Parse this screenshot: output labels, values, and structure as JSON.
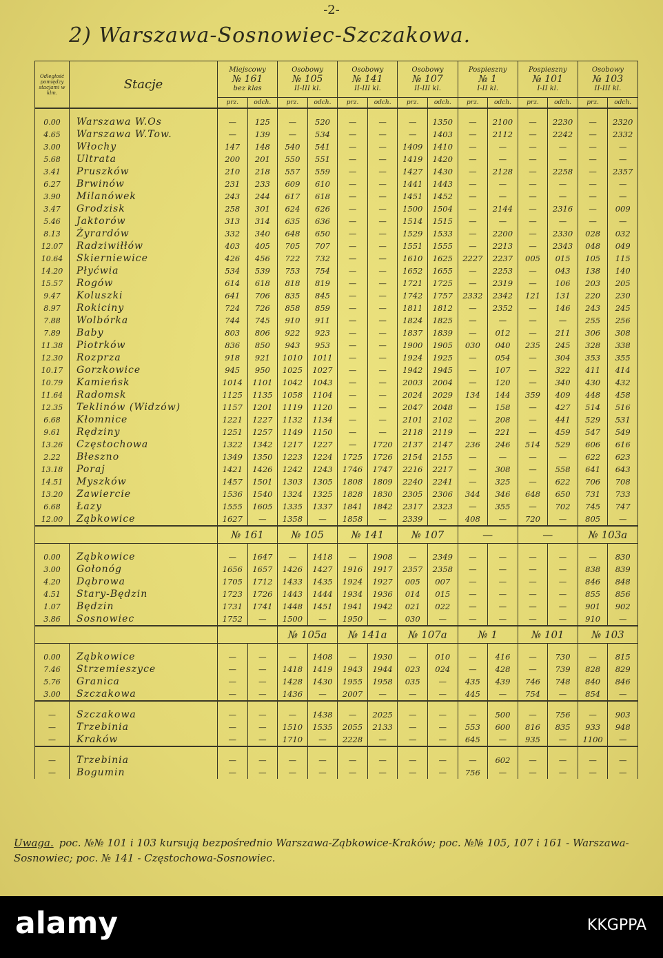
{
  "page_number": "-2-",
  "title": "2) Warszawa-Sosnowiec-Szczakowa.",
  "table": {
    "distance_header": "Odległość pomiędzy stacjami w klm.",
    "station_header": "Stacje",
    "trains": [
      {
        "category": "Miejscowy",
        "number": "№ 161",
        "classes": "bez klas"
      },
      {
        "category": "Osobowy",
        "number": "№ 105",
        "classes": "II-III kl."
      },
      {
        "category": "Osobowy",
        "number": "№ 141",
        "classes": "II-III kl."
      },
      {
        "category": "Osobowy",
        "number": "№ 107",
        "classes": "II-III kl."
      },
      {
        "category": "Pospieszny",
        "number": "№ 1",
        "classes": "I-II kl."
      },
      {
        "category": "Pospieszny",
        "number": "№ 101",
        "classes": "I-II kl."
      },
      {
        "category": "Osobowy",
        "number": "№ 103",
        "classes": "II-III kl."
      }
    ],
    "arrival_label": "prz.",
    "departure_label": "odch.",
    "sections": [
      {
        "rows": [
          [
            "0.00",
            "Warszawa W.Os",
            "—",
            "125",
            "—",
            "520",
            "—",
            "—",
            "—",
            "1350",
            "—",
            "2100",
            "—",
            "2230",
            "—",
            "2320"
          ],
          [
            "4.65",
            "Warszawa W.Tow.",
            "—",
            "139",
            "—",
            "534",
            "—",
            "—",
            "—",
            "1403",
            "—",
            "2112",
            "—",
            "2242",
            "—",
            "2332"
          ],
          [
            "3.00",
            "Włochy",
            "147",
            "148",
            "540",
            "541",
            "—",
            "—",
            "1409",
            "1410",
            "—",
            "—",
            "—",
            "—",
            "—",
            "—"
          ],
          [
            "5.68",
            "Ultrata",
            "200",
            "201",
            "550",
            "551",
            "—",
            "—",
            "1419",
            "1420",
            "—",
            "—",
            "—",
            "—",
            "—",
            "—"
          ],
          [
            "3.41",
            "Pruszków",
            "210",
            "218",
            "557",
            "559",
            "—",
            "—",
            "1427",
            "1430",
            "—",
            "2128",
            "—",
            "2258",
            "—",
            "2357"
          ],
          [
            "6.27",
            "Brwinów",
            "231",
            "233",
            "609",
            "610",
            "—",
            "—",
            "1441",
            "1443",
            "—",
            "—",
            "—",
            "—",
            "—",
            "—"
          ],
          [
            "3.90",
            "Milanówek",
            "243",
            "244",
            "617",
            "618",
            "—",
            "—",
            "1451",
            "1452",
            "—",
            "—",
            "—",
            "—",
            "—",
            "—"
          ],
          [
            "3.47",
            "Grodzisk",
            "258",
            "301",
            "624",
            "626",
            "—",
            "—",
            "1500",
            "1504",
            "—",
            "2144",
            "—",
            "2316",
            "—",
            "009"
          ],
          [
            "5.46",
            "Jaktorów",
            "313",
            "314",
            "635",
            "636",
            "—",
            "—",
            "1514",
            "1515",
            "—",
            "—",
            "—",
            "—",
            "—",
            "—"
          ],
          [
            "8.13",
            "Żyrardów",
            "332",
            "340",
            "648",
            "650",
            "—",
            "—",
            "1529",
            "1533",
            "—",
            "2200",
            "—",
            "2330",
            "028",
            "032"
          ],
          [
            "12.07",
            "Radziwiłłów",
            "403",
            "405",
            "705",
            "707",
            "—",
            "—",
            "1551",
            "1555",
            "—",
            "2213",
            "—",
            "2343",
            "048",
            "049"
          ],
          [
            "10.64",
            "Skierniewice",
            "426",
            "456",
            "722",
            "732",
            "—",
            "—",
            "1610",
            "1625",
            "2227",
            "2237",
            "005",
            "015",
            "105",
            "115"
          ],
          [
            "14.20",
            "Płyćwia",
            "534",
            "539",
            "753",
            "754",
            "—",
            "—",
            "1652",
            "1655",
            "—",
            "2253",
            "—",
            "043",
            "138",
            "140"
          ],
          [
            "15.57",
            "Rogów",
            "614",
            "618",
            "818",
            "819",
            "—",
            "—",
            "1721",
            "1725",
            "—",
            "2319",
            "—",
            "106",
            "203",
            "205"
          ],
          [
            "9.47",
            "Koluszki",
            "641",
            "706",
            "835",
            "845",
            "—",
            "—",
            "1742",
            "1757",
            "2332",
            "2342",
            "121",
            "131",
            "220",
            "230"
          ],
          [
            "8.97",
            "Rokiciny",
            "724",
            "726",
            "858",
            "859",
            "—",
            "—",
            "1811",
            "1812",
            "—",
            "2352",
            "—",
            "146",
            "243",
            "245"
          ],
          [
            "7.88",
            "Wolbórka",
            "744",
            "745",
            "910",
            "911",
            "—",
            "—",
            "1824",
            "1825",
            "—",
            "—",
            "—",
            "—",
            "255",
            "256"
          ],
          [
            "7.89",
            "Baby",
            "803",
            "806",
            "922",
            "923",
            "—",
            "—",
            "1837",
            "1839",
            "—",
            "012",
            "—",
            "211",
            "306",
            "308"
          ],
          [
            "11.38",
            "Piotrków",
            "836",
            "850",
            "943",
            "953",
            "—",
            "—",
            "1900",
            "1905",
            "030",
            "040",
            "235",
            "245",
            "328",
            "338"
          ],
          [
            "12.30",
            "Rozprza",
            "918",
            "921",
            "1010",
            "1011",
            "—",
            "—",
            "1924",
            "1925",
            "—",
            "054",
            "—",
            "304",
            "353",
            "355"
          ],
          [
            "10.17",
            "Gorzkowice",
            "945",
            "950",
            "1025",
            "1027",
            "—",
            "—",
            "1942",
            "1945",
            "—",
            "107",
            "—",
            "322",
            "411",
            "414"
          ],
          [
            "10.79",
            "Kamieńsk",
            "1014",
            "1101",
            "1042",
            "1043",
            "—",
            "—",
            "2003",
            "2004",
            "—",
            "120",
            "—",
            "340",
            "430",
            "432"
          ],
          [
            "11.64",
            "Radomsk",
            "1125",
            "1135",
            "1058",
            "1104",
            "—",
            "—",
            "2024",
            "2029",
            "134",
            "144",
            "359",
            "409",
            "448",
            "458"
          ],
          [
            "12.35",
            "Teklinów (Widzów)",
            "1157",
            "1201",
            "1119",
            "1120",
            "—",
            "—",
            "2047",
            "2048",
            "—",
            "158",
            "—",
            "427",
            "514",
            "516"
          ],
          [
            "6.68",
            "Kłomnice",
            "1221",
            "1227",
            "1132",
            "1134",
            "—",
            "—",
            "2101",
            "2102",
            "—",
            "208",
            "—",
            "441",
            "529",
            "531"
          ],
          [
            "9.61",
            "Rędziny",
            "1251",
            "1257",
            "1149",
            "1150",
            "—",
            "—",
            "2118",
            "2119",
            "—",
            "221",
            "—",
            "459",
            "547",
            "549"
          ],
          [
            "13.26",
            "Częstochowa",
            "1322",
            "1342",
            "1217",
            "1227",
            "—",
            "1720",
            "2137",
            "2147",
            "236",
            "246",
            "514",
            "529",
            "606",
            "616"
          ],
          [
            "2.22",
            "Błeszno",
            "1349",
            "1350",
            "1223",
            "1224",
            "1725",
            "1726",
            "2154",
            "2155",
            "—",
            "—",
            "—",
            "—",
            "622",
            "623"
          ],
          [
            "13.18",
            "Poraj",
            "1421",
            "1426",
            "1242",
            "1243",
            "1746",
            "1747",
            "2216",
            "2217",
            "—",
            "308",
            "—",
            "558",
            "641",
            "643"
          ],
          [
            "14.51",
            "Myszków",
            "1457",
            "1501",
            "1303",
            "1305",
            "1808",
            "1809",
            "2240",
            "2241",
            "—",
            "325",
            "—",
            "622",
            "706",
            "708"
          ],
          [
            "13.20",
            "Zawiercie",
            "1536",
            "1540",
            "1324",
            "1325",
            "1828",
            "1830",
            "2305",
            "2306",
            "344",
            "346",
            "648",
            "650",
            "731",
            "733"
          ],
          [
            "6.68",
            "Łazy",
            "1555",
            "1605",
            "1335",
            "1337",
            "1841",
            "1842",
            "2317",
            "2323",
            "—",
            "355",
            "—",
            "702",
            "745",
            "747"
          ],
          [
            "12.00",
            "Ząbkowice",
            "1627",
            "—",
            "1358",
            "—",
            "1858",
            "—",
            "2339",
            "—",
            "408",
            "—",
            "720",
            "—",
            "805",
            "—"
          ]
        ]
      },
      {
        "trains": [
          "№ 161",
          "№ 105",
          "№ 141",
          "№ 107",
          "—",
          "—",
          "№ 103a"
        ],
        "rows": [
          [
            "0.00",
            "Ząbkowice",
            "—",
            "1647",
            "—",
            "1418",
            "—",
            "1908",
            "—",
            "2349",
            "—",
            "—",
            "—",
            "—",
            "—",
            "830"
          ],
          [
            "3.00",
            "Gołonóg",
            "1656",
            "1657",
            "1426",
            "1427",
            "1916",
            "1917",
            "2357",
            "2358",
            "—",
            "—",
            "—",
            "—",
            "838",
            "839"
          ],
          [
            "4.20",
            "Dąbrowa",
            "1705",
            "1712",
            "1433",
            "1435",
            "1924",
            "1927",
            "005",
            "007",
            "—",
            "—",
            "—",
            "—",
            "846",
            "848"
          ],
          [
            "4.51",
            "Stary-Będzin",
            "1723",
            "1726",
            "1443",
            "1444",
            "1934",
            "1936",
            "014",
            "015",
            "—",
            "—",
            "—",
            "—",
            "855",
            "856"
          ],
          [
            "1.07",
            "Będzin",
            "1731",
            "1741",
            "1448",
            "1451",
            "1941",
            "1942",
            "021",
            "022",
            "—",
            "—",
            "—",
            "—",
            "901",
            "902"
          ],
          [
            "3.86",
            "Sosnowiec",
            "1752",
            "—",
            "1500",
            "—",
            "1950",
            "—",
            "030",
            "—",
            "—",
            "—",
            "—",
            "—",
            "910",
            "—"
          ]
        ]
      },
      {
        "trains": [
          null,
          "№ 105a",
          "№ 141a",
          "№ 107a",
          "№ 1",
          "№ 101",
          "№ 103"
        ],
        "rows": [
          [
            "0.00",
            "Ząbkowice",
            "—",
            "—",
            "—",
            "1408",
            "—",
            "1930",
            "—",
            "010",
            "—",
            "416",
            "—",
            "730",
            "—",
            "815"
          ],
          [
            "7.46",
            "Strzemieszyce",
            "—",
            "—",
            "1418",
            "1419",
            "1943",
            "1944",
            "023",
            "024",
            "—",
            "428",
            "—",
            "739",
            "828",
            "829"
          ],
          [
            "5.76",
            "Granica",
            "—",
            "—",
            "1428",
            "1430",
            "1955",
            "1958",
            "035",
            "—",
            "435",
            "439",
            "746",
            "748",
            "840",
            "846"
          ],
          [
            "3.00",
            "Szczakowa",
            "—",
            "—",
            "1436",
            "—",
            "2007",
            "—",
            "—",
            "—",
            "445",
            "—",
            "754",
            "—",
            "854",
            "—"
          ]
        ]
      },
      {
        "rows": [
          [
            "—",
            "Szczakowa",
            "—",
            "—",
            "—",
            "1438",
            "—",
            "2025",
            "—",
            "—",
            "—",
            "500",
            "—",
            "756",
            "—",
            "903"
          ],
          [
            "—",
            "Trzebinia",
            "—",
            "—",
            "1510",
            "1535",
            "2055",
            "2133",
            "—",
            "—",
            "553",
            "600",
            "816",
            "835",
            "933",
            "948"
          ],
          [
            "—",
            "Kraków",
            "—",
            "—",
            "1710",
            "—",
            "2228",
            "—",
            "—",
            "—",
            "645",
            "—",
            "935",
            "—",
            "1100",
            "—"
          ]
        ]
      },
      {
        "rows": [
          [
            "—",
            "Trzebinia",
            "—",
            "—",
            "—",
            "—",
            "—",
            "—",
            "—",
            "—",
            "—",
            "602",
            "—",
            "—",
            "—",
            "—"
          ],
          [
            "—",
            "Bogumin",
            "—",
            "—",
            "—",
            "—",
            "—",
            "—",
            "—",
            "—",
            "756",
            "—",
            "—",
            "—",
            "—",
            "—"
          ]
        ]
      }
    ]
  },
  "note_label": "Uwaga.",
  "note": "poc. №№ 101 i 103 kursują bezpośrednio Warszawa-Ząbkowice-Kraków; poc. №№ 105, 107 i 161 - Warszawa-Sosnowiec; poc. № 141 - Częstochowa-Sosnowiec.",
  "watermark": {
    "logo": "alamy",
    "image_id": "KKGPPA"
  }
}
